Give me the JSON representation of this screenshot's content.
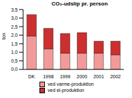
{
  "chart_data": {
    "type": "bar",
    "title": "CO₂-udslip pr. person",
    "y_label": "ton",
    "categories": [
      "DK",
      "1998",
      "1999",
      "2000",
      "2001",
      "2002"
    ],
    "series": [
      {
        "name": "ved varme-produktion",
        "color": "#f29a9a",
        "values": [
          1.95,
          1.2,
          0.95,
          0.95,
          0.95,
          0.85
        ]
      },
      {
        "name": "ved el-produktion",
        "color": "#cc2f2f",
        "values": [
          1.25,
          1.2,
          1.15,
          1.2,
          0.7,
          0.8
        ]
      }
    ],
    "stacked": true,
    "grid": false,
    "legend": "bottom",
    "ylim": [
      0,
      3.5
    ],
    "yticks": [
      {
        "value": 0,
        "label": "0,0"
      },
      {
        "value": 0.5,
        "label": "0,5"
      },
      {
        "value": 1,
        "label": "1,0"
      },
      {
        "value": 1.5,
        "label": "1,5"
      },
      {
        "value": 2,
        "label": "2,0"
      },
      {
        "value": 2.5,
        "label": "2,5"
      },
      {
        "value": 3,
        "label": "3,0"
      },
      {
        "value": 3.5,
        "label": "3,5"
      }
    ]
  }
}
